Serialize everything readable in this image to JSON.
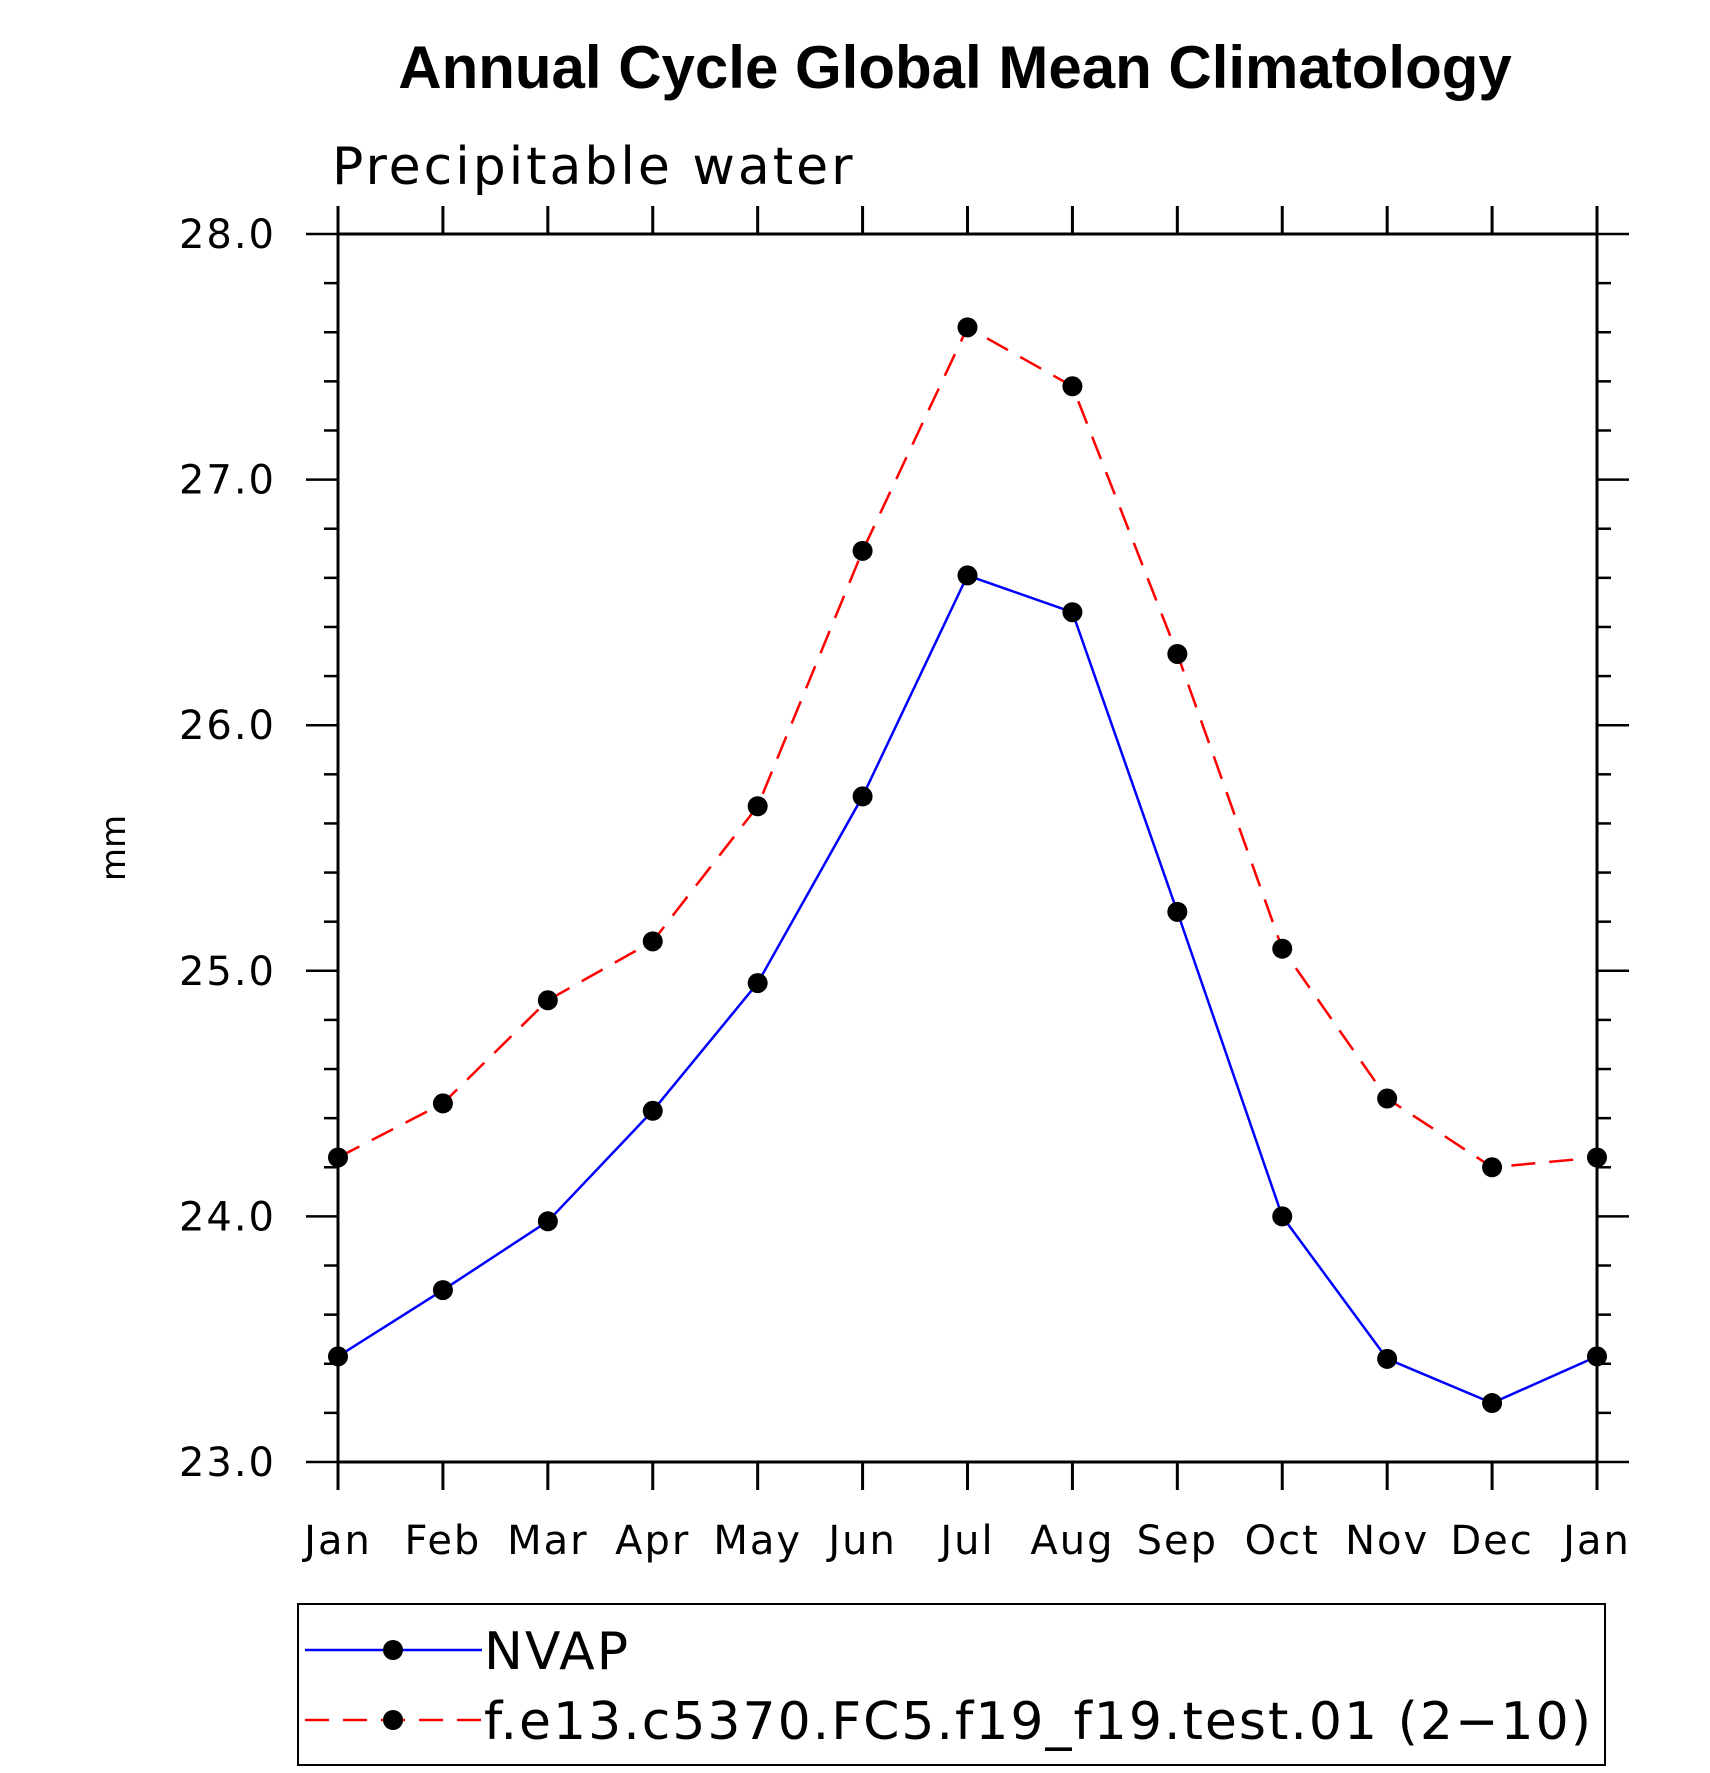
{
  "chart_data": {
    "type": "line",
    "title": "Annual Cycle Global Mean Climatology",
    "subtitle": "Precipitable water",
    "xlabel": "",
    "ylabel": "mm",
    "categories": [
      "Jan",
      "Feb",
      "Mar",
      "Apr",
      "May",
      "Jun",
      "Jul",
      "Aug",
      "Sep",
      "Oct",
      "Nov",
      "Dec",
      "Jan"
    ],
    "ylim": [
      23.0,
      28.0
    ],
    "yticks": [
      "23.0",
      "24.0",
      "25.0",
      "26.0",
      "27.0",
      "28.0"
    ],
    "grid": false,
    "legend_position": "bottom",
    "series": [
      {
        "name": "NVAP",
        "color": "#0000ff",
        "dash": "solid",
        "marker": "filled-circle",
        "values": [
          23.43,
          23.7,
          23.98,
          24.43,
          24.95,
          25.71,
          26.61,
          26.46,
          25.24,
          24.0,
          23.42,
          23.24,
          23.43
        ]
      },
      {
        "name": "f.e13.c5370.FC5.f19_f19.test.01 (2−10)",
        "color": "#ff0000",
        "dash": "dashed",
        "marker": "filled-circle",
        "values": [
          24.24,
          24.46,
          24.88,
          25.12,
          25.67,
          26.71,
          27.62,
          27.38,
          26.29,
          25.09,
          24.48,
          24.2,
          24.24
        ]
      }
    ]
  }
}
